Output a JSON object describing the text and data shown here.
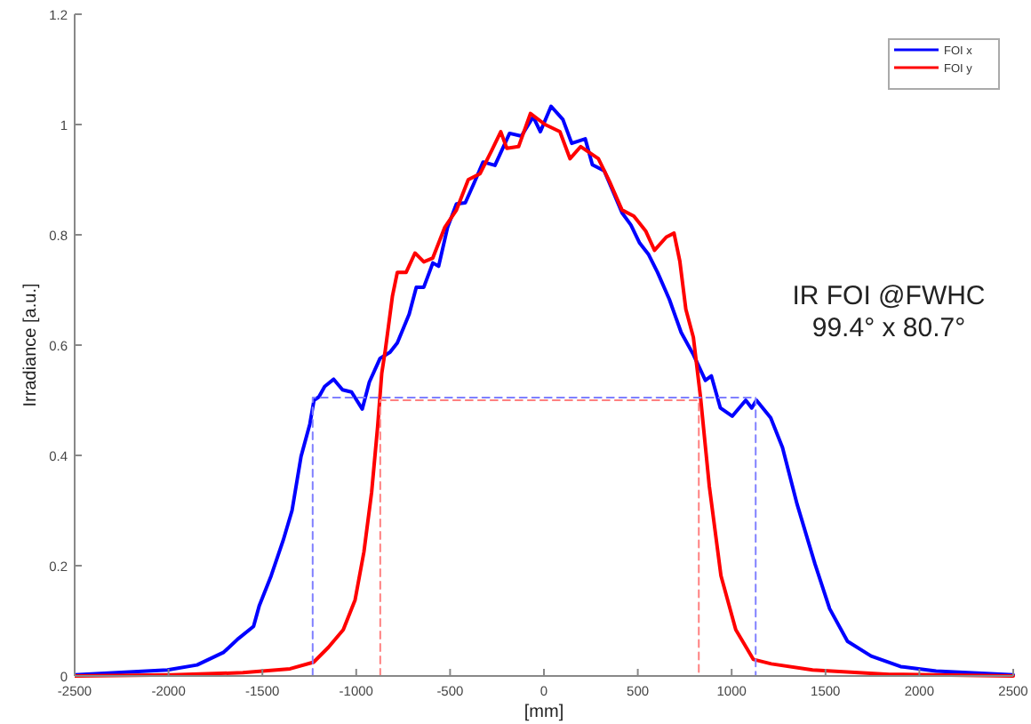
{
  "chart_data": {
    "type": "line",
    "xlabel": "[mm]",
    "ylabel": "Irradiance [a.u.]",
    "xlim": [
      -2500,
      2500
    ],
    "ylim": [
      0,
      1.2
    ],
    "xticks": [
      -2500,
      -2000,
      -1500,
      -1000,
      -500,
      0,
      500,
      1000,
      1500,
      2000,
      2500
    ],
    "yticks": [
      0,
      0.2,
      0.4,
      0.6,
      0.8,
      1,
      1.2
    ],
    "grid": false,
    "legend": "top right",
    "marker": "none",
    "annotations": [
      "IR FOI @FWHC",
      "99.4° x 80.7°"
    ],
    "series": [
      {
        "name": "FOI x",
        "color": "#0000ff",
        "line_style": "solid",
        "x": [
          -2500,
          -2006,
          -1848,
          -1706,
          -1627,
          -1547,
          -1516,
          -1453,
          -1389,
          -1342,
          -1294,
          -1247,
          -1225,
          -1199,
          -1168,
          -1120,
          -1073,
          -1025,
          -968,
          -930,
          -873,
          -820,
          -781,
          -718,
          -680,
          -640,
          -592,
          -561,
          -514,
          -466,
          -419,
          -372,
          -324,
          -261,
          -183,
          -120,
          -57,
          -19,
          38,
          101,
          148,
          220,
          258,
          321,
          369,
          416,
          463,
          510,
          558,
          605,
          668,
          731,
          797,
          860,
          892,
          940,
          1003,
          1075,
          1107,
          1132,
          1208,
          1271,
          1349,
          1444,
          1522,
          1617,
          1743,
          1900,
          2089,
          2500
        ],
        "values": [
          0.002,
          0.011,
          0.02,
          0.043,
          0.068,
          0.09,
          0.128,
          0.182,
          0.246,
          0.3,
          0.398,
          0.457,
          0.5,
          0.506,
          0.525,
          0.538,
          0.519,
          0.515,
          0.484,
          0.533,
          0.576,
          0.587,
          0.604,
          0.656,
          0.705,
          0.705,
          0.749,
          0.743,
          0.813,
          0.856,
          0.858,
          0.894,
          0.932,
          0.926,
          0.984,
          0.979,
          1.014,
          0.987,
          1.033,
          1.009,
          0.966,
          0.974,
          0.927,
          0.916,
          0.878,
          0.84,
          0.818,
          0.785,
          0.764,
          0.732,
          0.683,
          0.623,
          0.582,
          0.536,
          0.544,
          0.486,
          0.471,
          0.5,
          0.486,
          0.5,
          0.468,
          0.414,
          0.311,
          0.203,
          0.122,
          0.063,
          0.036,
          0.017,
          0.009,
          0.002
        ]
      },
      {
        "name": "FOI y",
        "color": "#ff0000",
        "line_style": "solid",
        "x": [
          -2500,
          -1981,
          -1604,
          -1352,
          -1227,
          -1148,
          -1069,
          -1006,
          -959,
          -918,
          -886,
          -864,
          -845,
          -807,
          -781,
          -734,
          -687,
          -640,
          -592,
          -529,
          -466,
          -403,
          -340,
          -277,
          -230,
          -198,
          -135,
          -72,
          6,
          85,
          139,
          196,
          290,
          353,
          416,
          479,
          542,
          589,
          652,
          693,
          724,
          756,
          796,
          834,
          881,
          943,
          1022,
          1116,
          1211,
          1431,
          1840,
          2500
        ],
        "values": [
          0,
          0.002,
          0.006,
          0.013,
          0.025,
          0.052,
          0.084,
          0.138,
          0.225,
          0.333,
          0.452,
          0.549,
          0.591,
          0.689,
          0.732,
          0.732,
          0.767,
          0.751,
          0.758,
          0.813,
          0.845,
          0.9,
          0.911,
          0.954,
          0.987,
          0.957,
          0.96,
          1.02,
          1.0,
          0.987,
          0.938,
          0.96,
          0.938,
          0.894,
          0.845,
          0.834,
          0.807,
          0.772,
          0.796,
          0.803,
          0.752,
          0.665,
          0.614,
          0.506,
          0.344,
          0.182,
          0.084,
          0.03,
          0.022,
          0.011,
          0.003,
          0
        ]
      },
      {
        "color": "#8080ff",
        "line_style": "dashed",
        "x": [
          -1232,
          -1232,
          1128,
          1128
        ],
        "values": [
          0,
          0.505,
          0.505,
          0
        ]
      },
      {
        "color": "#ff8080",
        "line_style": "dashed",
        "x": [
          -872,
          -872,
          825,
          825
        ],
        "values": [
          0,
          0.5,
          0.5,
          0
        ]
      }
    ]
  }
}
